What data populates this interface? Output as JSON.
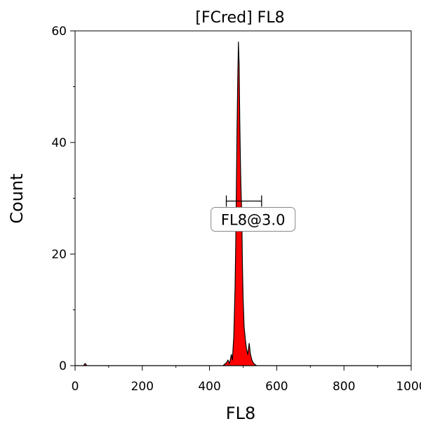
{
  "chart_data": {
    "type": "area",
    "title": "[FCred] FL8",
    "xlabel": "FL8",
    "ylabel": "Count",
    "xlim": [
      0,
      1000
    ],
    "ylim": [
      0,
      60
    ],
    "x_ticks": [
      0,
      200,
      400,
      600,
      800,
      1000
    ],
    "y_ticks": [
      0,
      20,
      40,
      60
    ],
    "x_tick_labels": [
      "0",
      "200",
      "400",
      "600",
      "800",
      "1000"
    ],
    "y_tick_labels": [
      "0",
      "20",
      "40",
      "60"
    ],
    "grid": false,
    "fill_color": "#ff0000",
    "outline_color": "#000000",
    "series": [
      {
        "x": [
          0,
          25,
          30,
          35,
          420,
          440,
          450,
          455,
          460,
          465,
          468,
          470,
          472,
          474,
          476,
          478,
          480,
          482,
          484,
          486,
          488,
          490,
          492,
          494,
          496,
          498,
          500,
          503,
          506,
          510,
          514,
          518,
          522,
          526,
          530,
          535,
          540,
          1000
        ],
        "y": [
          0,
          0,
          0.4,
          0,
          0,
          0,
          0.5,
          1,
          0.4,
          2,
          1,
          3,
          5,
          9,
          14,
          22,
          32,
          43,
          51,
          58,
          54,
          44,
          36,
          31,
          27,
          18,
          12,
          7,
          5,
          3,
          2,
          4,
          2,
          1,
          0.5,
          0.2,
          0,
          0
        ]
      }
    ],
    "gates": [
      {
        "label": "FL8@3.0",
        "x_start": 450,
        "x_end": 555,
        "y": 29.5
      }
    ]
  }
}
